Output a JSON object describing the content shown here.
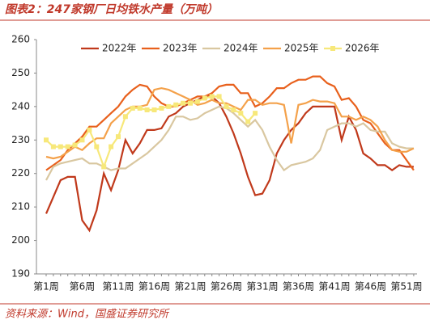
{
  "chart_data": {
    "type": "line",
    "title": "图表2：247家钢厂日均铁水产量（万吨）",
    "source": "资料来源：Wind，国盛证券研究所",
    "categories": [
      "第1周",
      null,
      null,
      null,
      null,
      "第6周",
      null,
      null,
      null,
      null,
      "第11周",
      null,
      null,
      null,
      null,
      "第16周",
      null,
      null,
      null,
      null,
      "第21周",
      null,
      null,
      null,
      null,
      "第26周",
      null,
      null,
      null,
      null,
      "第31周",
      null,
      null,
      null,
      null,
      "第36周",
      null,
      null,
      null,
      null,
      "第41周",
      null,
      null,
      null,
      null,
      "第46周",
      null,
      null,
      null,
      null,
      "第51周",
      null
    ],
    "ylim": [
      190,
      260
    ],
    "yticks": [
      190,
      200,
      210,
      220,
      230,
      240,
      250,
      260
    ],
    "series": [
      {
        "name": "2022年",
        "color": "#c0391b",
        "values": [
          208,
          213,
          218,
          219,
          219,
          206,
          203,
          209,
          220,
          215,
          221,
          230,
          226,
          229,
          233,
          233,
          233.5,
          237,
          238,
          240,
          241,
          242,
          243,
          243,
          241,
          237,
          232,
          226,
          219,
          213.5,
          214,
          218,
          226,
          230,
          233,
          235,
          238,
          240,
          240,
          240,
          240,
          230,
          237,
          233,
          226,
          224.5,
          222.5,
          222.5,
          221,
          222.5,
          222,
          222
        ]
      },
      {
        "name": "2023年",
        "color": "#e8601c",
        "values": [
          221,
          222.5,
          224,
          227,
          229,
          231,
          234,
          234,
          236,
          238,
          240,
          243,
          245,
          246.5,
          246,
          243,
          241,
          240,
          240,
          241,
          242,
          243,
          243,
          244,
          246,
          246.5,
          246.5,
          244,
          244,
          240,
          241,
          243,
          245.5,
          245.5,
          247,
          248,
          248,
          249,
          249,
          247,
          246,
          242,
          242.5,
          240,
          236,
          235,
          232,
          229,
          227,
          227,
          224,
          221
        ]
      },
      {
        "name": "2024年",
        "color": "#d9c7a0",
        "values": [
          218,
          222,
          223,
          223.5,
          224,
          224.5,
          223,
          223,
          222,
          221,
          221.5,
          221.5,
          223,
          224.5,
          226,
          228,
          230,
          233,
          237,
          237,
          236,
          236.5,
          238,
          239,
          240,
          239.5,
          238,
          236,
          234,
          236,
          233,
          228,
          224,
          221,
          222.5,
          223,
          223.5,
          224.5,
          227,
          233,
          234,
          235,
          235,
          234,
          235,
          233,
          232.5,
          232.5,
          229,
          228,
          227.5,
          227.5
        ]
      },
      {
        "name": "2025年",
        "color": "#f4a14a",
        "values": [
          225,
          224.5,
          225,
          226.5,
          228,
          227,
          229,
          230.5,
          230.5,
          235,
          237,
          239,
          240,
          240,
          240.5,
          245,
          245.5,
          245,
          244,
          243,
          242,
          240.5,
          241,
          242,
          241,
          241,
          240,
          239,
          242,
          242,
          240.5,
          241,
          241,
          240.5,
          229,
          240.5,
          241,
          242,
          241.5,
          241.5,
          241,
          237,
          237,
          236,
          237,
          236,
          234,
          230,
          227,
          226.5,
          226.5,
          227.5
        ]
      },
      {
        "name": "2026年",
        "color": "#f7e87a",
        "marker": "square",
        "values": [
          230,
          228,
          228,
          228,
          228.5,
          230,
          233,
          228,
          222,
          228,
          231,
          237,
          239.5,
          239.5,
          239,
          239,
          239.5,
          240,
          240.5,
          241,
          241,
          241.5,
          242.5,
          243,
          243,
          240,
          239,
          238,
          235.5,
          238,
          null,
          null,
          null,
          null,
          null,
          null,
          null,
          null,
          null,
          null,
          null,
          null,
          null,
          null,
          null,
          null,
          null,
          null,
          null,
          null,
          null,
          null
        ]
      }
    ]
  }
}
